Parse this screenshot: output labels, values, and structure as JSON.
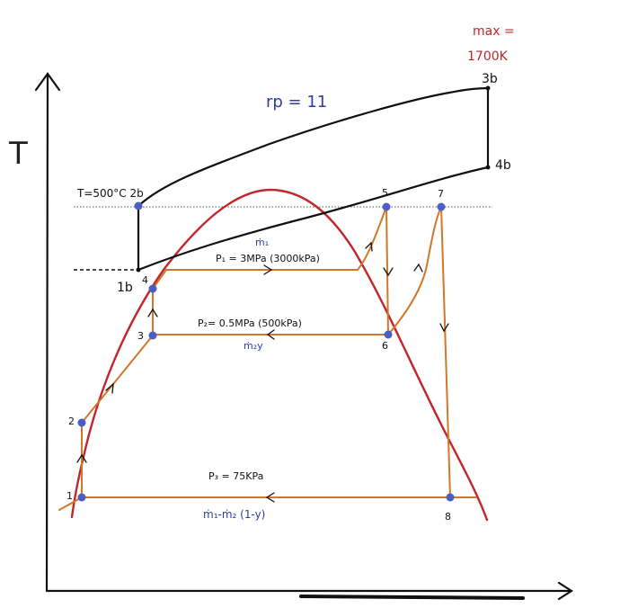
{
  "axes": {
    "y_label": "T"
  },
  "annotations": {
    "max_line1": "max =",
    "max_line2": "1700K",
    "rp": "rp = 11",
    "t500": "T=500°C 2b"
  },
  "states": {
    "s1": "1",
    "s2": "2",
    "s3": "3",
    "s4": "4",
    "s5": "5",
    "s6": "6",
    "s7": "7",
    "s8": "8",
    "b1": "1b",
    "b3": "3b",
    "b4": "4b"
  },
  "lines": {
    "p1": "P₁ = 3MPa (3000kPa)",
    "p2": "P₂= 0.5MPa (500kPa)",
    "p3": "P₃ = 75KPa",
    "m1": "ṁ₁",
    "m2y": "ṁ₂y",
    "bottom_flow": "ṁ₁-ṁ₂ (1-y)"
  },
  "colors": {
    "dome": "#c0262b",
    "rankine": "#d0772a",
    "brayton": "#111111",
    "points": "#4a5fc1",
    "note_red": "#c0262b",
    "note_blue": "#2b3ea6"
  }
}
